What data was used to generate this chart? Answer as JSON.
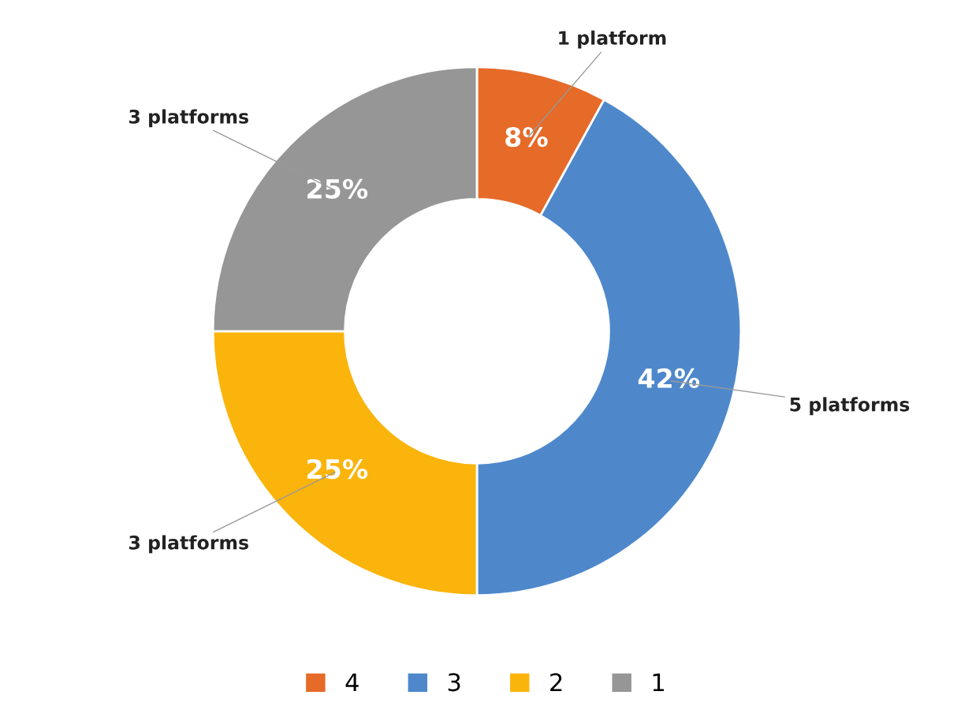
{
  "chart_data": {
    "type": "donut",
    "categories": [
      "4",
      "3",
      "2",
      "1"
    ],
    "values": [
      8,
      42,
      25,
      25
    ],
    "colors": [
      "#e66a28",
      "#4e88cb",
      "#fbb40b",
      "#969696"
    ],
    "value_labels": [
      "8%",
      "42%",
      "25%",
      "25%"
    ],
    "annotations": [
      "1 platform",
      "5 platforms",
      "3 platforms",
      "3 platforms"
    ],
    "legend": "bottom"
  }
}
